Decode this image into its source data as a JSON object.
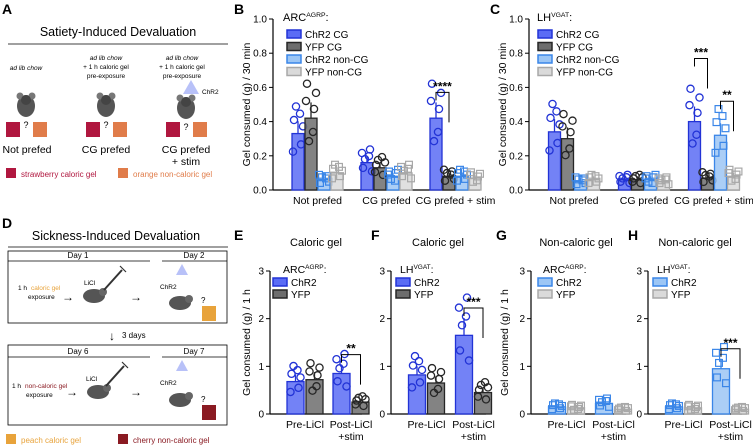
{
  "panels": {
    "A": {
      "letter": "A",
      "title": "Satiety-Induced Devaluation",
      "conditions": [
        {
          "top": [
            "ad lib chow"
          ],
          "label": "Not prefed"
        },
        {
          "top": [
            "ad lib chow",
            "+ 1 h caloric gel",
            "pre-exposure"
          ],
          "label": "CG prefed"
        },
        {
          "top": [
            "ad lib chow",
            "+ 1 h caloric gel",
            "pre-exposure"
          ],
          "label": "CG prefed",
          "label2": "+ stim",
          "stim": "ChR2"
        }
      ],
      "question_mark": "?",
      "legend": [
        {
          "label": "strawberry caloric gel",
          "color": "#b0173f"
        },
        {
          "label": "orange non-caloric gel",
          "color": "#e07c4a"
        }
      ]
    },
    "D": {
      "letter": "D",
      "title": "Sickness-Induced Devaluation",
      "day1": "Day 1",
      "day2": "Day 2",
      "days3": "3 days",
      "day6": "Day 6",
      "day7": "Day 7",
      "exposure1_a": "1 h",
      "exposure1_b": "caloric gel",
      "exposure1_c": "exposure",
      "exposure2_a": "1 h",
      "exposure2_b": "non-caloric gel",
      "exposure2_c": "exposure",
      "licl": "LiCl",
      "chr2": "ChR2",
      "question_mark": "?",
      "legend": [
        {
          "label": "peach caloric gel",
          "color": "#e8a33b"
        },
        {
          "label": "cherry non-caloric gel",
          "color": "#8a1a22"
        }
      ]
    }
  },
  "colors": {
    "chr2_fill": "#5a6cf5",
    "chr2_edge": "#2233d6",
    "yfp_fill": "#6d6d6d",
    "yfp_edge": "#262626",
    "chr2_noncg_fill": "#9cc6f5",
    "chr2_noncg_edge": "#3a86e8",
    "yfp_noncg_fill": "#dadada",
    "yfp_noncg_edge": "#a8a8a8"
  },
  "chart_data": [
    {
      "panel": "B",
      "type": "bar",
      "title": "ARC",
      "title_sup": "AGRP",
      "title_suffix": ":",
      "ylabel": "Gel consumed (g) / 30 min",
      "ylim": [
        0,
        1.0
      ],
      "yticks": [
        "0.0",
        "0.2",
        "0.4",
        "0.6",
        "0.8",
        "1.0"
      ],
      "categories": [
        "Not prefed",
        "CG prefed",
        "CG prefed + stim"
      ],
      "series": [
        {
          "name": "ChR2 CG",
          "style": "chr2",
          "values": [
            0.33,
            0.16,
            0.42
          ]
        },
        {
          "name": "YFP CG",
          "style": "yfp",
          "values": [
            0.42,
            0.13,
            0.08
          ]
        },
        {
          "name": "ChR2 non-CG",
          "style": "chr2_noncg",
          "values": [
            0.06,
            0.08,
            0.08
          ]
        },
        {
          "name": "YFP non-CG",
          "style": "yfp_noncg",
          "values": [
            0.1,
            0.1,
            0.07
          ]
        }
      ],
      "significance": [
        {
          "label": "****"
        }
      ]
    },
    {
      "panel": "C",
      "type": "bar",
      "title": "LH",
      "title_sup": "VGAT",
      "title_suffix": ":",
      "ylabel": "Gel consumed (g) / 30 min",
      "ylim": [
        0,
        1.0
      ],
      "yticks": [
        "0.0",
        "0.2",
        "0.4",
        "0.6",
        "0.8",
        "1.0"
      ],
      "categories": [
        "Not prefed",
        "CG prefed",
        "CG prefed + stim"
      ],
      "series": [
        {
          "name": "ChR2 CG",
          "style": "chr2",
          "values": [
            0.34,
            0.06,
            0.4
          ]
        },
        {
          "name": "YFP CG",
          "style": "yfp",
          "values": [
            0.3,
            0.06,
            0.07
          ]
        },
        {
          "name": "ChR2 non-CG",
          "style": "chr2_noncg",
          "values": [
            0.05,
            0.06,
            0.32
          ]
        },
        {
          "name": "YFP non-CG",
          "style": "yfp_noncg",
          "values": [
            0.06,
            0.05,
            0.08
          ]
        }
      ],
      "significance": [
        {
          "label": "***"
        },
        {
          "label": "**"
        }
      ]
    },
    {
      "panel": "E",
      "type": "bar",
      "title": "Caloric gel",
      "genotype": "ARC",
      "genotype_sup": "AGRP",
      "genotype_suffix": ":",
      "ylabel": "Gel consumed (g) / 1 h",
      "ylim": [
        0,
        3
      ],
      "yticks": [
        "0",
        "1",
        "2",
        "3"
      ],
      "categories": [
        "Pre-LiCl",
        "Post-LiCl +stim"
      ],
      "series": [
        {
          "name": "ChR2",
          "style": "chr2",
          "values": [
            0.68,
            0.85
          ]
        },
        {
          "name": "YFP",
          "style": "yfp",
          "values": [
            0.72,
            0.25
          ]
        }
      ],
      "significance": [
        {
          "label": "**"
        }
      ]
    },
    {
      "panel": "F",
      "type": "bar",
      "title": "Caloric gel",
      "genotype": "LH",
      "genotype_sup": "VGAT",
      "genotype_suffix": ":",
      "ylabel": "",
      "ylim": [
        0,
        3
      ],
      "yticks": [
        "0",
        "1",
        "2",
        "3"
      ],
      "categories": [
        "Pre-LiCl",
        "Post-LiCl +stim"
      ],
      "series": [
        {
          "name": "ChR2",
          "style": "chr2",
          "values": [
            0.82,
            1.65
          ]
        },
        {
          "name": "YFP",
          "style": "yfp",
          "values": [
            0.65,
            0.45
          ]
        }
      ],
      "significance": [
        {
          "label": "***"
        }
      ]
    },
    {
      "panel": "G",
      "type": "bar",
      "title": "Non-caloric gel",
      "genotype": "ARC",
      "genotype_sup": "AGRP",
      "genotype_suffix": ":",
      "ylabel": "Gel consumed (g) / 1 h",
      "ylim": [
        0,
        3
      ],
      "yticks": [
        "0",
        "1",
        "2",
        "3"
      ],
      "categories": [
        "Pre-LiCl",
        "Post-LiCl +stim"
      ],
      "series": [
        {
          "name": "ChR2",
          "style": "chr2_noncg",
          "values": [
            0.15,
            0.22
          ]
        },
        {
          "name": "YFP",
          "style": "yfp_noncg",
          "values": [
            0.13,
            0.1
          ]
        }
      ],
      "significance": []
    },
    {
      "panel": "H",
      "type": "bar",
      "title": "Non-caloric gel",
      "genotype": "LH",
      "genotype_sup": "VGAT",
      "genotype_suffix": ":",
      "ylabel": "",
      "ylim": [
        0,
        3
      ],
      "yticks": [
        "0",
        "1",
        "2",
        "3"
      ],
      "categories": [
        "Pre-LiCl",
        "Post-LiCl +stim"
      ],
      "series": [
        {
          "name": "ChR2",
          "style": "chr2_noncg",
          "values": [
            0.15,
            0.95
          ]
        },
        {
          "name": "YFP",
          "style": "yfp_noncg",
          "values": [
            0.13,
            0.1
          ]
        }
      ],
      "significance": [
        {
          "label": "***"
        }
      ]
    }
  ]
}
